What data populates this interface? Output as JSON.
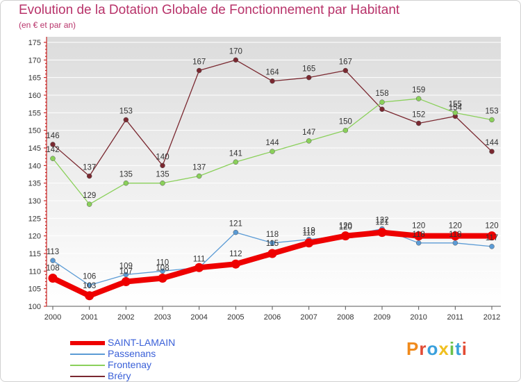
{
  "chart_data": {
    "type": "line",
    "title": "Evolution de la Dotation Globale de Fonctionnement par Habitant",
    "subtitle": "(en € et par an)",
    "categories": [
      "2000",
      "2001",
      "2002",
      "2003",
      "2004",
      "2005",
      "2006",
      "2007",
      "2008",
      "2009",
      "2010",
      "2011",
      "2012"
    ],
    "ylim": [
      100,
      175
    ],
    "yticks": [
      100,
      105,
      110,
      115,
      120,
      125,
      130,
      135,
      140,
      145,
      150,
      155,
      160,
      165,
      170,
      175
    ],
    "grid": true,
    "series": [
      {
        "name": "Bréry",
        "color": "#7a2830",
        "values": [
          146,
          137,
          153,
          140,
          167,
          170,
          164,
          165,
          167,
          156,
          152,
          154,
          144
        ],
        "labels": [
          "146",
          "137",
          "153",
          "140",
          "167",
          "170",
          "164",
          "165",
          "167",
          "",
          "152",
          "154",
          "144"
        ]
      },
      {
        "name": "Frontenay",
        "color": "#8ad05a",
        "values": [
          142,
          129,
          135,
          135,
          137,
          141,
          144,
          147,
          150,
          158,
          159,
          155,
          153
        ],
        "labels": [
          "142",
          "129",
          "135",
          "135",
          "137",
          "141",
          "144",
          "147",
          "150",
          "158",
          "159",
          "155",
          "153"
        ]
      },
      {
        "name": "Passenans",
        "color": "#5b9bd5",
        "values": [
          113,
          106,
          109,
          110,
          111,
          121,
          118,
          119,
          120,
          122,
          118,
          118,
          117
        ],
        "labels": [
          "113",
          "106",
          "109",
          "110",
          "111",
          "121",
          "118",
          "119",
          "120",
          "122",
          "118",
          "118",
          "117"
        ]
      },
      {
        "name": "SAINT-LAMAIN",
        "color": "#ee0000",
        "values": [
          108,
          103,
          107,
          108,
          111,
          112,
          115,
          118,
          120,
          121,
          120,
          120,
          120
        ],
        "labels": [
          "108",
          "103",
          "107",
          "108",
          "",
          "112",
          "115",
          "118",
          "120",
          "121",
          "120",
          "120",
          "120"
        ]
      }
    ]
  },
  "legend": [
    {
      "name": "SAINT-LAMAIN",
      "color": "#ee0000",
      "thick": true
    },
    {
      "name": "Passenans",
      "color": "#5b9bd5",
      "thick": false
    },
    {
      "name": "Frontenay",
      "color": "#8ad05a",
      "thick": false
    },
    {
      "name": "Bréry",
      "color": "#7a2830",
      "thick": false
    }
  ],
  "brand": {
    "letters": [
      "P",
      "r",
      "o",
      "x",
      "i",
      "t",
      "i"
    ]
  }
}
